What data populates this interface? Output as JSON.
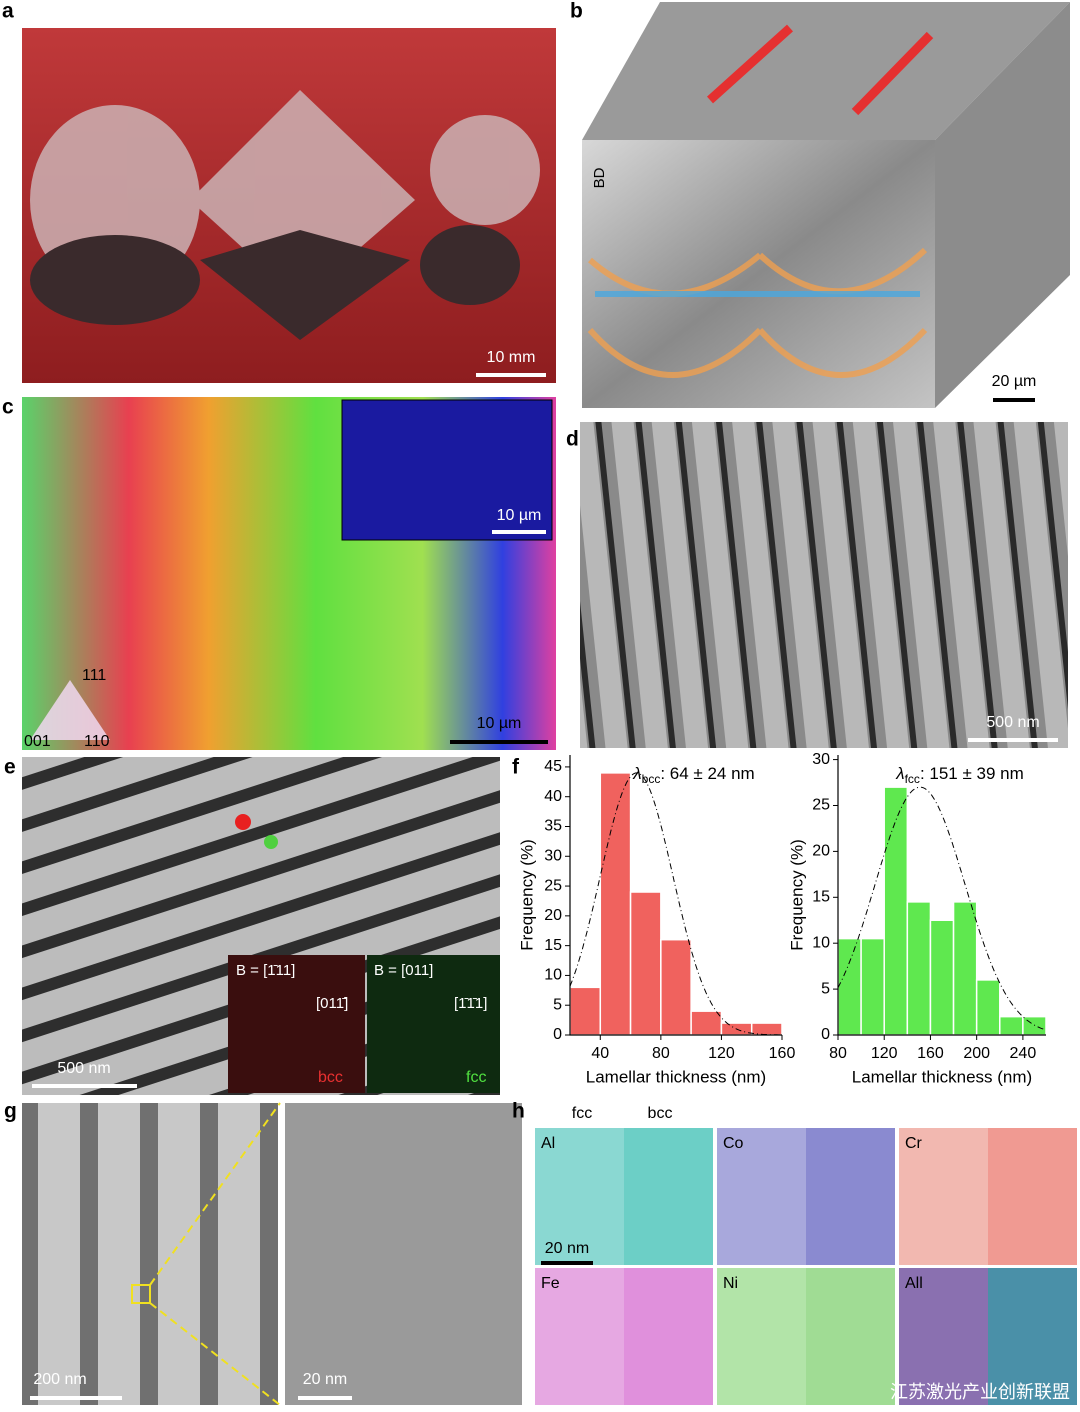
{
  "panels": {
    "a": {
      "letter": "a",
      "scale_bar": "10 mm"
    },
    "b": {
      "letter": "b",
      "scale_bar": "20 µm",
      "axis_label": "BD"
    },
    "c": {
      "letter": "c",
      "scale_bar": "10 µm",
      "inset_scale_bar": "10 µm",
      "legend": [
        "111",
        "001",
        "110"
      ]
    },
    "d": {
      "letter": "d",
      "scale_bar": "500 nm"
    },
    "e": {
      "letter": "e",
      "scale_bar": "500 nm",
      "insets": [
        {
          "zone_axis": "B = [1̄11]",
          "direction": "[011̄]",
          "phase": "bcc"
        },
        {
          "zone_axis": "B = [011]",
          "direction": "[1̄1̄1]",
          "phase": "fcc"
        }
      ]
    },
    "f": {
      "letter": "f"
    },
    "g": {
      "letter": "g",
      "scale_bar": "200 nm",
      "inset_scale_bar": "20 nm"
    },
    "h": {
      "letter": "h",
      "columns": [
        "fcc",
        "bcc"
      ],
      "scale_bar": "20 nm",
      "maps": [
        "Al",
        "Co",
        "Cr",
        "Fe",
        "Ni",
        "All"
      ]
    }
  },
  "watermark": "江苏激光产业创新联盟",
  "chart_data": [
    {
      "type": "histogram",
      "symbol": "λ",
      "subscript": "bcc",
      "title": ": 64 ± 24 nm",
      "xlabel": "Lamellar thickness (nm)",
      "ylabel": "Frequency (%)",
      "bins": [
        20,
        40,
        60,
        80,
        100,
        120,
        140,
        160
      ],
      "values": [
        8,
        44,
        24,
        16,
        4,
        2,
        2
      ],
      "color": "#f0625e",
      "xlim": [
        20,
        160
      ],
      "xticks": [
        40,
        80,
        120,
        160
      ],
      "ylim": [
        0,
        47
      ],
      "yticks": [
        0,
        5,
        10,
        15,
        20,
        25,
        30,
        35,
        40,
        45
      ],
      "fit": {
        "mean": 64,
        "sd": 24,
        "peak": 44
      }
    },
    {
      "type": "histogram",
      "symbol": "λ",
      "subscript": "fcc",
      "title": ": 151 ± 39 nm",
      "xlabel": "Lamellar thickness (nm)",
      "ylabel": "Frequency (%)",
      "bins": [
        80,
        100,
        120,
        140,
        160,
        180,
        200,
        220,
        240,
        260
      ],
      "values": [
        10.5,
        10.5,
        27,
        14.5,
        12.5,
        14.5,
        6,
        2,
        2
      ],
      "color": "#5fe84f",
      "xlim": [
        80,
        260
      ],
      "xticks": [
        80,
        120,
        160,
        200,
        240
      ],
      "ylim": [
        0,
        30.5
      ],
      "yticks": [
        0,
        5,
        10,
        15,
        20,
        25,
        30
      ],
      "fit": {
        "mean": 151,
        "sd": 39,
        "peak": 27
      }
    }
  ]
}
